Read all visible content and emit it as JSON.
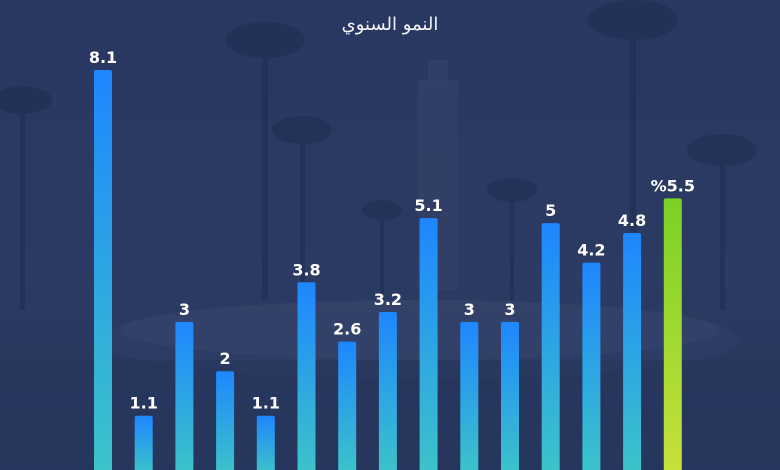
{
  "chart_data": {
    "type": "bar",
    "title": "النمو السنوي",
    "value_labels": [
      "8.1",
      "1.1",
      "3",
      "2",
      "1.1",
      "3.8",
      "2.6",
      "3.2",
      "5.1",
      "3",
      "3",
      "5",
      "4.2",
      "4.8",
      "%5.5"
    ],
    "values": [
      8.1,
      1.1,
      3,
      2,
      1.1,
      3.8,
      2.6,
      3.2,
      5.1,
      3,
      3,
      5,
      4.2,
      4.8,
      5.5
    ],
    "highlight_index": 14,
    "ylim": [
      0,
      8.1
    ],
    "grid": false,
    "colors": {
      "bar_top": "#1e86ff",
      "bar_bottom": "#3cc4c8",
      "highlight_top": "#7ad126",
      "highlight_bottom": "#c7e13a",
      "label": "#ffffff"
    }
  }
}
